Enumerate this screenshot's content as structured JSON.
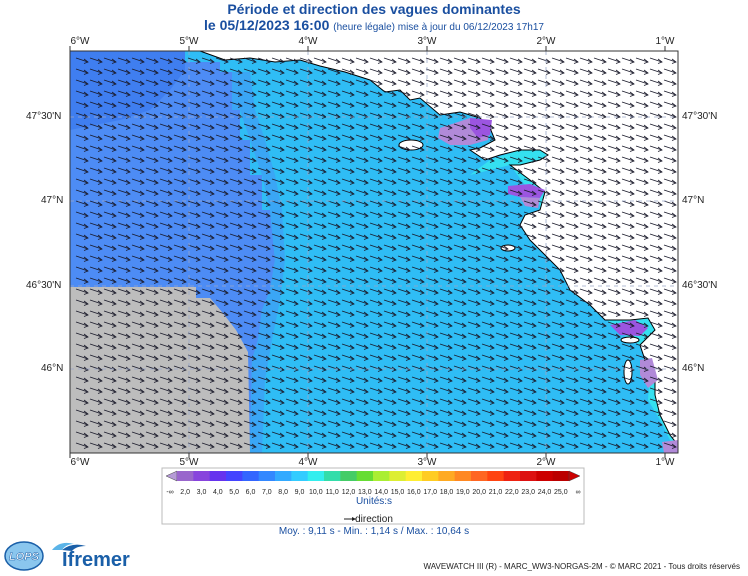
{
  "header": {
    "title": "Période et direction des vagues dominantes",
    "date_line": "le 05/12/2023 16:00",
    "update_note": "(heure légale) mise à jour du 06/12/2023 17h17"
  },
  "axes": {
    "longitude_labels": [
      "6°W",
      "5°W",
      "4°W",
      "3°W",
      "2°W",
      "1°W"
    ],
    "latitude_labels": [
      "47°30'N",
      "47°N",
      "46°30'N",
      "46°N"
    ]
  },
  "colorbar": {
    "labels": [
      "2,0",
      "3,0",
      "4,0",
      "5,0",
      "6,0",
      "7,0",
      "8,0",
      "9,0",
      "10,0",
      "11,0",
      "12,0",
      "13,0",
      "14,0",
      "15,0",
      "16,0",
      "17,0",
      "18,0",
      "19,0",
      "20,0",
      "21,0",
      "22,0",
      "23,0",
      "24,0",
      "25,0"
    ],
    "colors": [
      "#9966cc",
      "#8844dd",
      "#6633ee",
      "#4444ff",
      "#3366ff",
      "#3388ff",
      "#33aaff",
      "#33ccff",
      "#33eeee",
      "#33ddaa",
      "#44cc66",
      "#66dd33",
      "#aaee33",
      "#ddee33",
      "#ffee33",
      "#ffcc22",
      "#ffaa22",
      "#ff8822",
      "#ff6622",
      "#ff4411",
      "#ee2211",
      "#dd1111",
      "#cc0000",
      "#bb0000"
    ],
    "under_label": "-∞",
    "over_label": "∞",
    "units": "Unités:s"
  },
  "legend": {
    "direction_label": "direction",
    "stats": "Moy. : 9,11 s   -   Min. : 1,14 s / Max. : 10,64 s"
  },
  "footer": {
    "copyright": "WAVEWATCH III (R) - MARC_WW3-NORGAS-2M - © MARC 2021 - Tous droits réservés",
    "logo_lops": "LOPS",
    "logo_ifremer": "Ifremer"
  },
  "map_colors": {
    "no_data": "#bdbdbd",
    "deep_blue": "#4d8cf5",
    "mid_blue": "#3aa6f5",
    "main_blue": "#2fbdf5",
    "cyan": "#35e0f0",
    "purple": "#9b55e0",
    "light_purple": "#b18ad8",
    "land": "#ffffff",
    "arrow": "#1a1a2a"
  },
  "wave_direction": "from west-northwest"
}
